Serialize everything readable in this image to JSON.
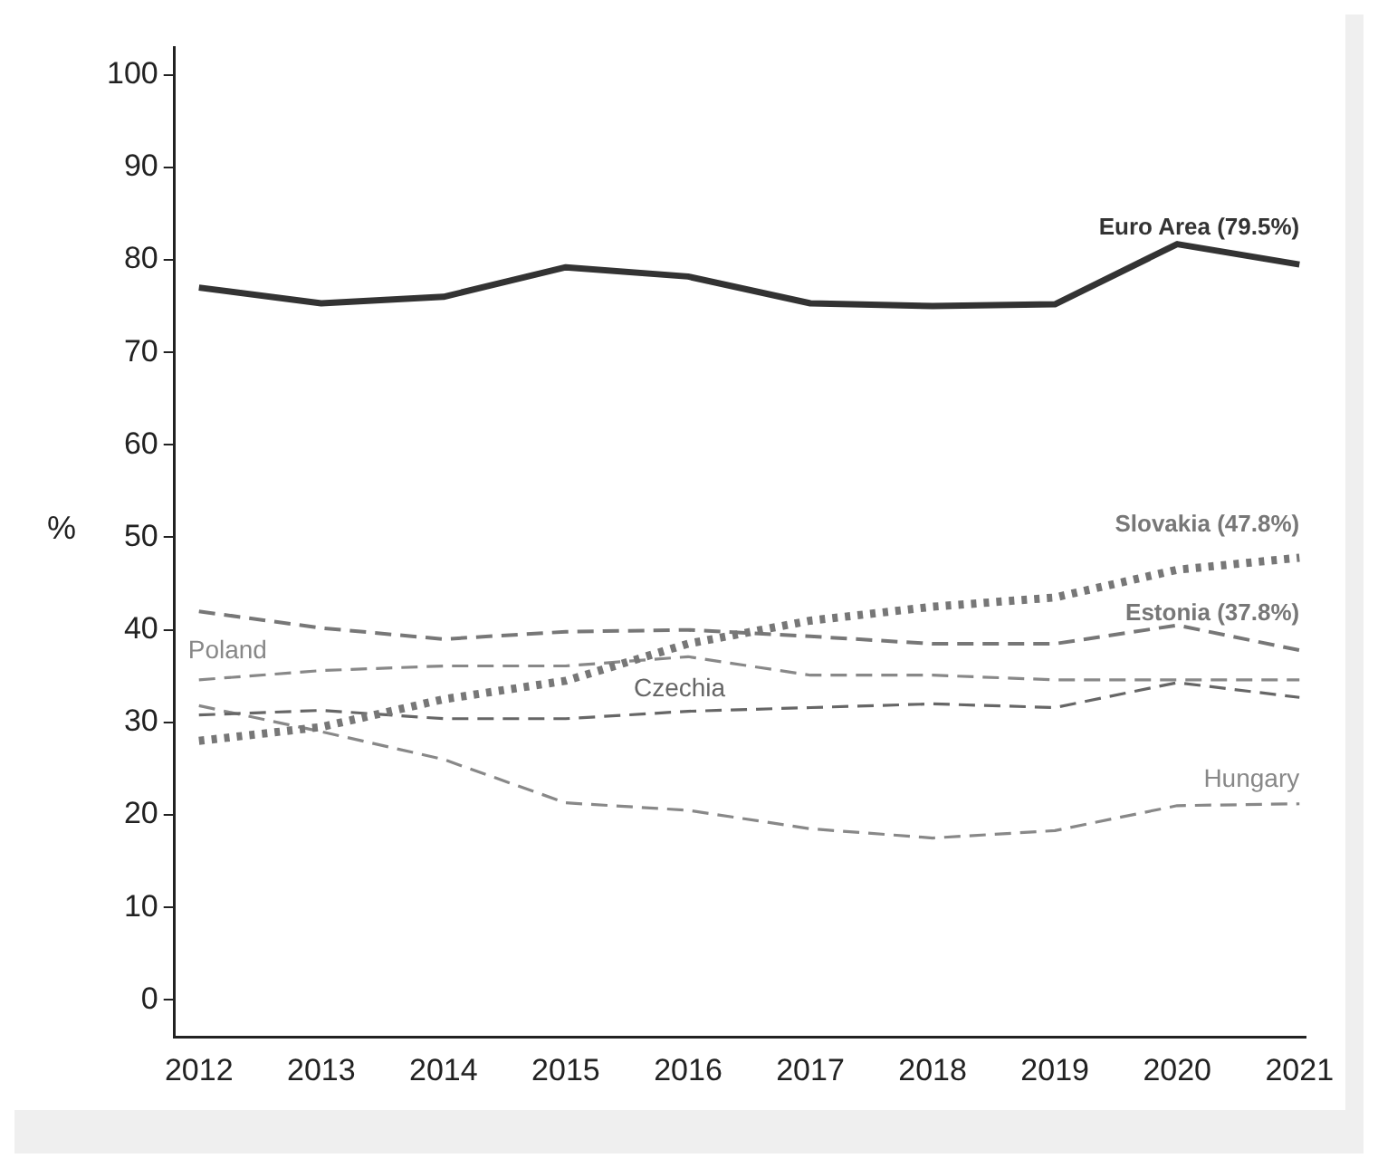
{
  "chart_data": {
    "type": "line",
    "ylabel": "%",
    "x": [
      2012,
      2013,
      2014,
      2015,
      2016,
      2017,
      2018,
      2019,
      2020,
      2021
    ],
    "series": [
      {
        "name": "Euro Area (79.5%)",
        "color": "#333333",
        "line_style": "solid",
        "values": [
          77,
          75.3,
          76,
          79.2,
          78.2,
          75.3,
          75,
          75.2,
          81.7,
          79.5
        ]
      },
      {
        "name": "Slovakia (47.8%)",
        "color": "#777777",
        "line_style": "dotted",
        "values": [
          28,
          29.5,
          32.5,
          34.5,
          38.5,
          41,
          42.5,
          43.5,
          46.5,
          47.8
        ]
      },
      {
        "name": "Estonia (37.8%)",
        "color": "#777777",
        "line_style": "dashed",
        "values": [
          42,
          40.2,
          39,
          39.8,
          40,
          39.3,
          38.5,
          38.5,
          40.5,
          37.8
        ]
      },
      {
        "name": "Poland",
        "color": "#888888",
        "line_style": "dashed",
        "values": [
          34.6,
          35.6,
          36.1,
          36.1,
          37.1,
          35.1,
          35.1,
          34.6,
          34.6,
          34.6
        ]
      },
      {
        "name": "Czechia",
        "color": "#666666",
        "line_style": "dashed",
        "values": [
          30.8,
          31.3,
          30.4,
          30.4,
          31.2,
          31.6,
          32,
          31.6,
          34.3,
          32.7
        ]
      },
      {
        "name": "Hungary",
        "color": "#888888",
        "line_style": "dashed",
        "values": [
          31.8,
          29,
          26,
          21.3,
          20.5,
          18.5,
          17.5,
          18.3,
          21,
          21.2
        ]
      }
    ],
    "xlim": [
      2011.8,
      2021.05
    ],
    "ylim": [
      -4,
      103
    ],
    "xticks": [
      2012,
      2013,
      2014,
      2015,
      2016,
      2017,
      2018,
      2019,
      2020,
      2021
    ],
    "yticks": [
      0,
      10,
      20,
      30,
      40,
      50,
      60,
      70,
      80,
      90,
      100
    ],
    "grid": false,
    "legend": false,
    "marker": "none"
  }
}
